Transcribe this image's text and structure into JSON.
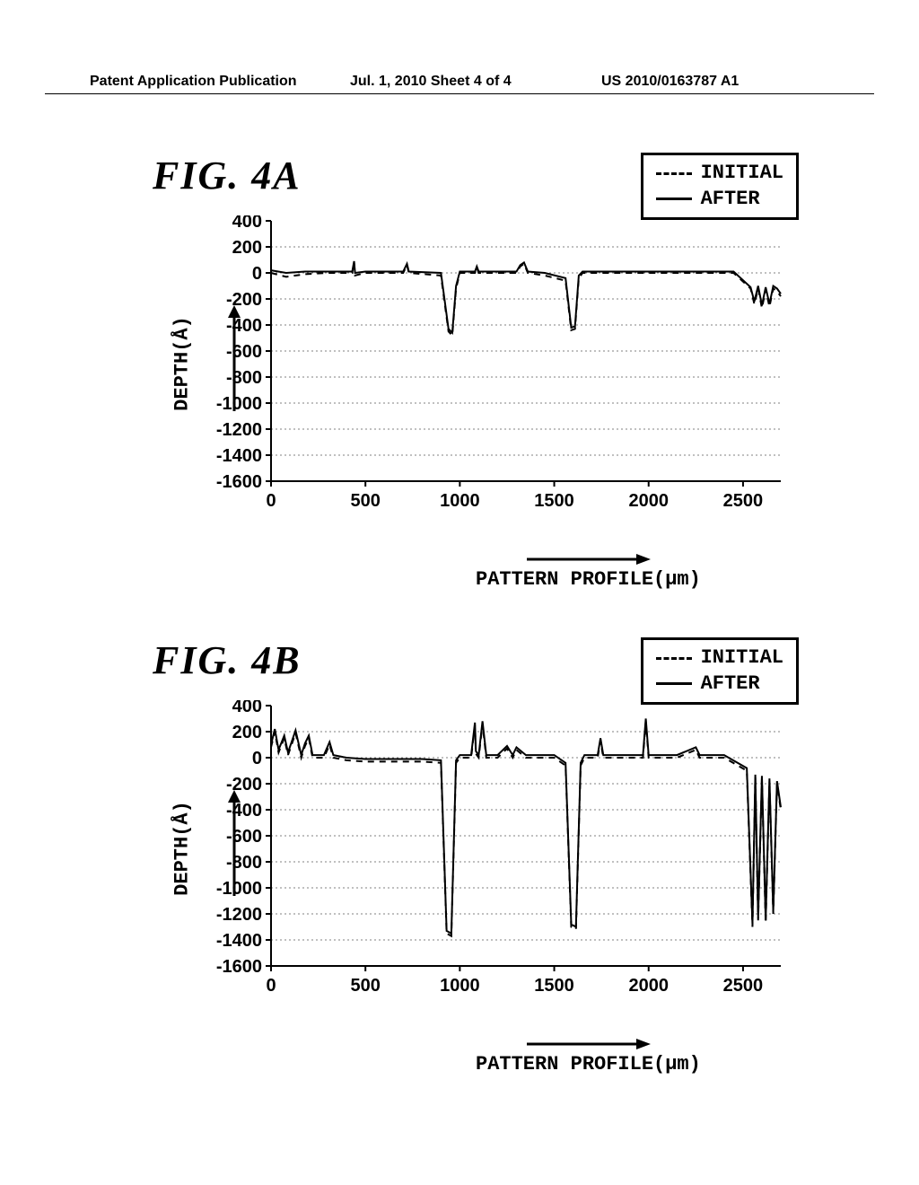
{
  "header": {
    "left": "Patent Application Publication",
    "mid": "Jul. 1, 2010  Sheet 4 of 4",
    "right": "US 2010/0163787 A1"
  },
  "legend": {
    "initial": "INITIAL",
    "after": "AFTER"
  },
  "axis_labels": {
    "y": "DEPTH(Å)",
    "x": "PATTERN PROFILE(μm)"
  },
  "figA": {
    "title": "FIG. 4A",
    "type": "line",
    "xlim": [
      0,
      2700
    ],
    "ylim": [
      -1600,
      400
    ],
    "xticks": [
      0,
      500,
      1000,
      1500,
      2000,
      2500
    ],
    "yticks": [
      400,
      200,
      0,
      -200,
      -400,
      -600,
      -800,
      -1000,
      -1200,
      -1400,
      -1600
    ],
    "grid_color": "#808080",
    "axis_color": "#000000",
    "line_color": "#000000",
    "background_color": "#ffffff",
    "line_width": 2,
    "series_initial": [
      [
        0,
        0
      ],
      [
        80,
        -30
      ],
      [
        180,
        -10
      ],
      [
        300,
        0
      ],
      [
        430,
        0
      ],
      [
        440,
        80
      ],
      [
        445,
        -20
      ],
      [
        500,
        0
      ],
      [
        700,
        0
      ],
      [
        720,
        60
      ],
      [
        730,
        0
      ],
      [
        900,
        -20
      ],
      [
        940,
        -450
      ],
      [
        960,
        -480
      ],
      [
        980,
        -120
      ],
      [
        1000,
        0
      ],
      [
        1080,
        0
      ],
      [
        1090,
        40
      ],
      [
        1100,
        0
      ],
      [
        1300,
        0
      ],
      [
        1320,
        50
      ],
      [
        1340,
        70
      ],
      [
        1360,
        0
      ],
      [
        1450,
        -20
      ],
      [
        1560,
        -60
      ],
      [
        1590,
        -440
      ],
      [
        1610,
        -430
      ],
      [
        1630,
        -40
      ],
      [
        1650,
        0
      ],
      [
        1900,
        0
      ],
      [
        2100,
        0
      ],
      [
        2300,
        0
      ],
      [
        2450,
        0
      ],
      [
        2540,
        -120
      ],
      [
        2560,
        -240
      ],
      [
        2580,
        -120
      ],
      [
        2600,
        -270
      ],
      [
        2620,
        -130
      ],
      [
        2640,
        -260
      ],
      [
        2660,
        -120
      ],
      [
        2680,
        -140
      ],
      [
        2700,
        -180
      ]
    ],
    "series_after": [
      [
        0,
        20
      ],
      [
        80,
        0
      ],
      [
        180,
        10
      ],
      [
        300,
        10
      ],
      [
        430,
        10
      ],
      [
        440,
        90
      ],
      [
        445,
        0
      ],
      [
        500,
        10
      ],
      [
        700,
        10
      ],
      [
        720,
        70
      ],
      [
        730,
        10
      ],
      [
        900,
        0
      ],
      [
        940,
        -430
      ],
      [
        960,
        -460
      ],
      [
        980,
        -100
      ],
      [
        1000,
        10
      ],
      [
        1080,
        10
      ],
      [
        1090,
        50
      ],
      [
        1100,
        10
      ],
      [
        1300,
        10
      ],
      [
        1320,
        60
      ],
      [
        1340,
        80
      ],
      [
        1360,
        10
      ],
      [
        1450,
        0
      ],
      [
        1560,
        -40
      ],
      [
        1590,
        -420
      ],
      [
        1610,
        -410
      ],
      [
        1630,
        -20
      ],
      [
        1650,
        10
      ],
      [
        1900,
        10
      ],
      [
        2100,
        10
      ],
      [
        2300,
        10
      ],
      [
        2450,
        10
      ],
      [
        2540,
        -110
      ],
      [
        2560,
        -220
      ],
      [
        2580,
        -100
      ],
      [
        2600,
        -250
      ],
      [
        2620,
        -110
      ],
      [
        2640,
        -240
      ],
      [
        2660,
        -100
      ],
      [
        2680,
        -120
      ],
      [
        2700,
        -160
      ]
    ]
  },
  "figB": {
    "title": "FIG. 4B",
    "type": "line",
    "xlim": [
      0,
      2700
    ],
    "ylim": [
      -1600,
      400
    ],
    "xticks": [
      0,
      500,
      1000,
      1500,
      2000,
      2500
    ],
    "yticks": [
      400,
      200,
      0,
      -200,
      -400,
      -600,
      -800,
      -1000,
      -1200,
      -1400,
      -1600
    ],
    "grid_color": "#808080",
    "axis_color": "#000000",
    "line_color": "#000000",
    "background_color": "#ffffff",
    "line_width": 2,
    "series_initial": [
      [
        0,
        80
      ],
      [
        20,
        200
      ],
      [
        40,
        40
      ],
      [
        70,
        150
      ],
      [
        90,
        20
      ],
      [
        130,
        190
      ],
      [
        160,
        0
      ],
      [
        180,
        90
      ],
      [
        200,
        150
      ],
      [
        220,
        0
      ],
      [
        280,
        0
      ],
      [
        310,
        100
      ],
      [
        330,
        0
      ],
      [
        400,
        -20
      ],
      [
        500,
        -30
      ],
      [
        600,
        -30
      ],
      [
        700,
        -30
      ],
      [
        800,
        -30
      ],
      [
        900,
        -40
      ],
      [
        930,
        -1350
      ],
      [
        955,
        -1370
      ],
      [
        980,
        -40
      ],
      [
        1000,
        0
      ],
      [
        1060,
        0
      ],
      [
        1080,
        250
      ],
      [
        1085,
        30
      ],
      [
        1100,
        0
      ],
      [
        1120,
        260
      ],
      [
        1140,
        0
      ],
      [
        1200,
        0
      ],
      [
        1250,
        70
      ],
      [
        1280,
        0
      ],
      [
        1300,
        60
      ],
      [
        1350,
        0
      ],
      [
        1500,
        0
      ],
      [
        1560,
        -60
      ],
      [
        1590,
        -1300
      ],
      [
        1615,
        -1320
      ],
      [
        1640,
        -60
      ],
      [
        1660,
        0
      ],
      [
        1730,
        0
      ],
      [
        1745,
        130
      ],
      [
        1760,
        0
      ],
      [
        1800,
        0
      ],
      [
        1970,
        0
      ],
      [
        1985,
        280
      ],
      [
        2000,
        0
      ],
      [
        2150,
        0
      ],
      [
        2250,
        60
      ],
      [
        2270,
        0
      ],
      [
        2400,
        0
      ],
      [
        2520,
        -100
      ],
      [
        2550,
        -1300
      ],
      [
        2565,
        -150
      ],
      [
        2580,
        -1250
      ],
      [
        2600,
        -160
      ],
      [
        2620,
        -1270
      ],
      [
        2640,
        -180
      ],
      [
        2660,
        -1200
      ],
      [
        2680,
        -200
      ],
      [
        2700,
        -400
      ]
    ],
    "series_after": [
      [
        0,
        100
      ],
      [
        20,
        220
      ],
      [
        40,
        60
      ],
      [
        70,
        170
      ],
      [
        90,
        40
      ],
      [
        130,
        210
      ],
      [
        160,
        20
      ],
      [
        180,
        110
      ],
      [
        200,
        170
      ],
      [
        220,
        20
      ],
      [
        280,
        20
      ],
      [
        310,
        120
      ],
      [
        330,
        20
      ],
      [
        400,
        0
      ],
      [
        500,
        -10
      ],
      [
        600,
        -10
      ],
      [
        700,
        -10
      ],
      [
        800,
        -10
      ],
      [
        900,
        -20
      ],
      [
        930,
        -1330
      ],
      [
        955,
        -1350
      ],
      [
        980,
        -20
      ],
      [
        1000,
        20
      ],
      [
        1060,
        20
      ],
      [
        1080,
        270
      ],
      [
        1085,
        50
      ],
      [
        1100,
        20
      ],
      [
        1120,
        280
      ],
      [
        1140,
        20
      ],
      [
        1200,
        20
      ],
      [
        1250,
        90
      ],
      [
        1280,
        20
      ],
      [
        1300,
        80
      ],
      [
        1350,
        20
      ],
      [
        1500,
        20
      ],
      [
        1560,
        -40
      ],
      [
        1590,
        -1280
      ],
      [
        1615,
        -1300
      ],
      [
        1640,
        -40
      ],
      [
        1660,
        20
      ],
      [
        1730,
        20
      ],
      [
        1745,
        150
      ],
      [
        1760,
        20
      ],
      [
        1800,
        20
      ],
      [
        1970,
        20
      ],
      [
        1985,
        300
      ],
      [
        2000,
        20
      ],
      [
        2150,
        20
      ],
      [
        2250,
        80
      ],
      [
        2270,
        20
      ],
      [
        2400,
        20
      ],
      [
        2520,
        -80
      ],
      [
        2550,
        -1280
      ],
      [
        2565,
        -130
      ],
      [
        2580,
        -1230
      ],
      [
        2600,
        -140
      ],
      [
        2620,
        -1250
      ],
      [
        2640,
        -160
      ],
      [
        2660,
        -1180
      ],
      [
        2680,
        -180
      ],
      [
        2700,
        -380
      ]
    ]
  }
}
